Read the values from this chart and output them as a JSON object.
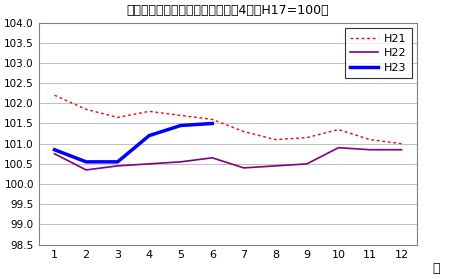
{
  "title": "生鮮食品を除く総合指数の動き　4市（H17=100）",
  "xlabel": "月",
  "ylim": [
    98.5,
    104.0
  ],
  "yticks": [
    98.5,
    99.0,
    99.5,
    100.0,
    100.5,
    101.0,
    101.5,
    102.0,
    102.5,
    103.0,
    103.5,
    104.0
  ],
  "xticks": [
    1,
    2,
    3,
    4,
    5,
    6,
    7,
    8,
    9,
    10,
    11,
    12
  ],
  "H21_x": [
    1,
    2,
    3,
    4,
    5,
    6,
    7,
    8,
    9,
    10,
    11,
    12
  ],
  "H21_y": [
    102.2,
    101.85,
    101.65,
    101.8,
    101.7,
    101.6,
    101.3,
    101.1,
    101.15,
    101.35,
    101.1,
    101.0
  ],
  "H22_x": [
    1,
    2,
    3,
    4,
    5,
    6,
    7,
    8,
    9,
    10,
    11,
    12
  ],
  "H22_y": [
    100.75,
    100.35,
    100.45,
    100.5,
    100.55,
    100.65,
    100.4,
    100.45,
    100.5,
    100.9,
    100.85,
    100.85
  ],
  "H23_x": [
    1,
    2,
    3,
    4,
    5,
    6
  ],
  "H23_y": [
    100.85,
    100.55,
    100.55,
    101.2,
    101.45,
    101.5
  ],
  "H21_color": "#ff0000",
  "H22_color": "#800080",
  "H23_color": "#0000ff",
  "bg_color": "#ffffff",
  "plot_bg_color": "#ffffff",
  "grid_color": "#c0c0c0",
  "border_color": "#808080",
  "legend_labels": [
    "H21",
    "H22",
    "H23"
  ]
}
